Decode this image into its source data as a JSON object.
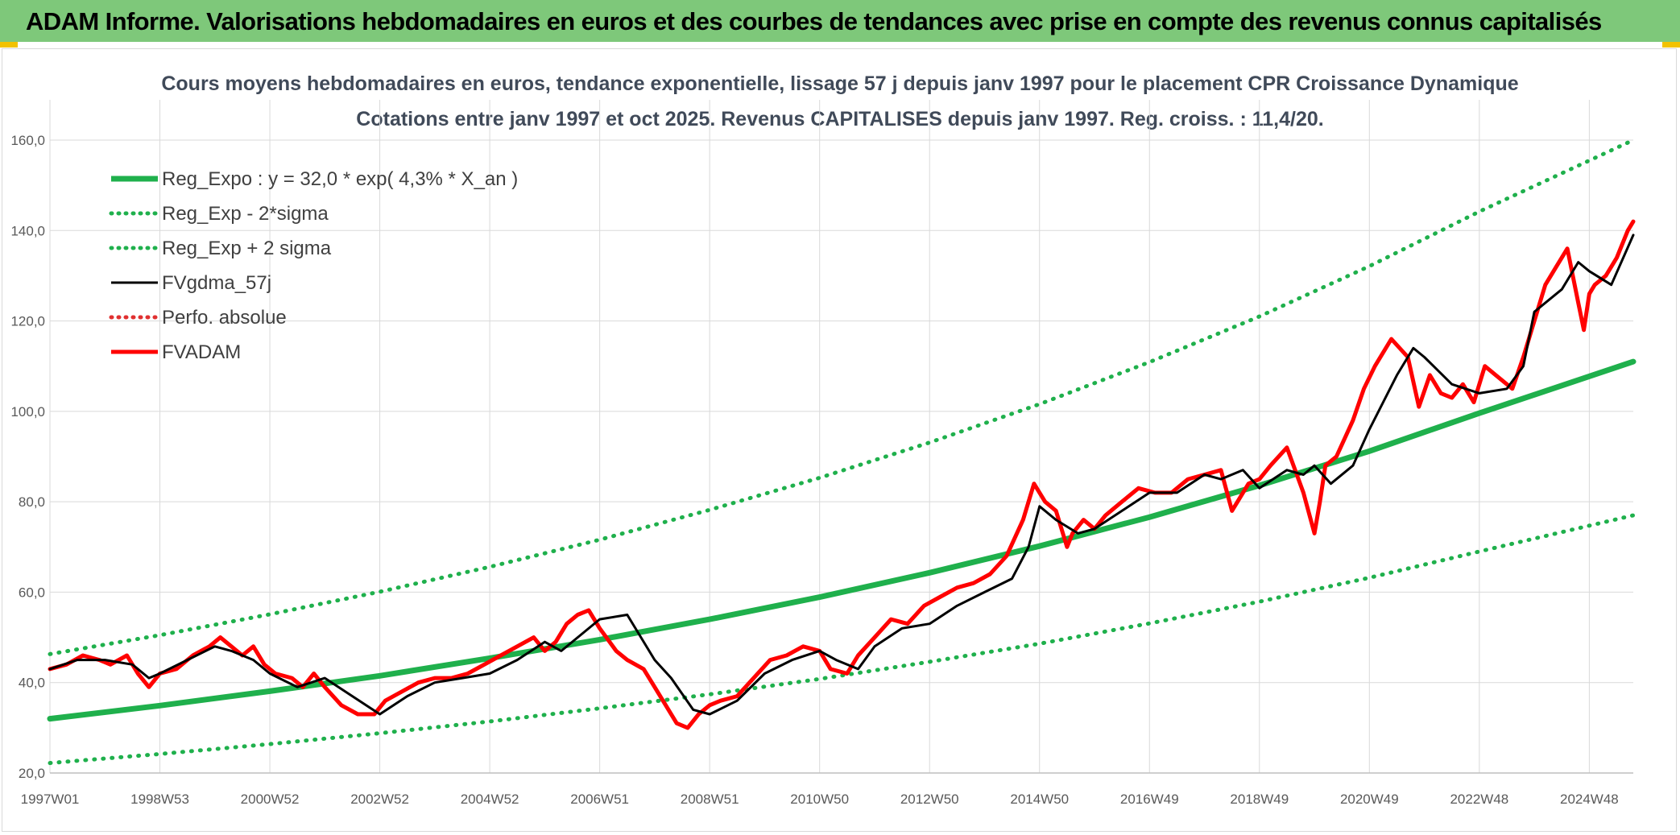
{
  "banner": {
    "title": "ADAM Informe. Valorisations hebdomadaires en euros et des courbes de tendances avec prise en compte des revenus connus capitalisés"
  },
  "colors": {
    "banner": "#7ec87a",
    "regression": "#1fb04c",
    "price": "#ff0000",
    "smoothed": "#000000",
    "perf": "#e03030",
    "grid": "#d9d9d9"
  },
  "chart_data": {
    "type": "line",
    "title": "Cours moyens hebdomadaires en euros, tendance exponentielle, lissage 57 j depuis janv 1997 pour le placement CPR Croissance Dynamique",
    "subtitle": "Cotations entre janv 1997 et oct 2025. Revenus CAPITALISES depuis janv 1997. Reg. croiss. : 11,4/20.",
    "xlabel": "",
    "ylabel": "",
    "ylim": [
      20,
      160
    ],
    "yticks": [
      "20,0",
      "40,0",
      "60,0",
      "80,0",
      "100,0",
      "120,0",
      "140,0",
      "160,0"
    ],
    "xlim": [
      1997.0,
      2025.8
    ],
    "xtick_labels": [
      "1997W01",
      "1998W53",
      "2000W52",
      "2002W52",
      "2004W52",
      "2006W51",
      "2008W51",
      "2010W50",
      "2012W50",
      "2014W50",
      "2016W49",
      "2018W49",
      "2020W49",
      "2022W48",
      "2024W48"
    ],
    "xtick_years": [
      1997.0,
      1999.0,
      2001.0,
      2003.0,
      2005.0,
      2007.0,
      2009.0,
      2011.0,
      2013.0,
      2015.0,
      2017.0,
      2019.0,
      2021.0,
      2023.0,
      2025.0
    ],
    "grid": true,
    "legend_position": "top-left",
    "series": [
      {
        "name": "Reg_Expo : y = 32,0 * exp( 4,3% *  X_an )",
        "style": "solid-thick",
        "color": "#1fb04c",
        "x": [
          1997.0,
          1999.0,
          2001.0,
          2003.0,
          2005.0,
          2007.0,
          2009.0,
          2011.0,
          2013.0,
          2015.0,
          2017.0,
          2019.0,
          2021.0,
          2023.0,
          2025.8
        ],
        "y": [
          32.0,
          34.9,
          38.1,
          41.5,
          45.4,
          49.5,
          54.0,
          58.9,
          64.3,
          70.2,
          76.6,
          83.6,
          91.2,
          99.6,
          111.0
        ]
      },
      {
        "name": "Reg_Exp - 2*sigma",
        "style": "dotted",
        "color": "#1fb04c",
        "x": [
          1997.0,
          1999.0,
          2001.0,
          2003.0,
          2005.0,
          2007.0,
          2009.0,
          2011.0,
          2013.0,
          2015.0,
          2017.0,
          2019.0,
          2021.0,
          2023.0,
          2025.8
        ],
        "y": [
          22.2,
          24.2,
          26.4,
          28.8,
          31.4,
          34.3,
          37.4,
          40.8,
          44.6,
          48.6,
          53.1,
          57.9,
          63.2,
          69.0,
          77.0
        ]
      },
      {
        "name": "Reg_Exp + 2 sigma",
        "style": "dotted",
        "color": "#1fb04c",
        "x": [
          1997.0,
          1999.0,
          2001.0,
          2003.0,
          2005.0,
          2007.0,
          2009.0,
          2011.0,
          2013.0,
          2015.0,
          2017.0,
          2019.0,
          2021.0,
          2023.0,
          2025.8
        ],
        "y": [
          46.3,
          50.5,
          55.1,
          60.1,
          65.6,
          71.6,
          78.2,
          85.3,
          93.1,
          101.6,
          110.9,
          121.0,
          132.1,
          144.2,
          160.0
        ]
      },
      {
        "name": "FVgdma_57j",
        "style": "solid",
        "color": "#000000",
        "x": [
          1997.0,
          1997.5,
          1998.0,
          1998.5,
          1998.8,
          1999.0,
          1999.5,
          2000.0,
          2000.3,
          2000.7,
          2001.0,
          2001.5,
          2002.0,
          2002.5,
          2003.0,
          2003.5,
          2004.0,
          2004.5,
          2005.0,
          2005.5,
          2006.0,
          2006.3,
          2006.6,
          2007.0,
          2007.5,
          2008.0,
          2008.3,
          2008.7,
          2009.0,
          2009.5,
          2010.0,
          2010.5,
          2011.0,
          2011.3,
          2011.7,
          2012.0,
          2012.5,
          2013.0,
          2013.5,
          2014.0,
          2014.5,
          2014.8,
          2015.0,
          2015.3,
          2015.7,
          2016.0,
          2016.5,
          2017.0,
          2017.5,
          2018.0,
          2018.3,
          2018.7,
          2019.0,
          2019.5,
          2019.8,
          2020.0,
          2020.3,
          2020.7,
          2021.0,
          2021.5,
          2021.8,
          2022.0,
          2022.5,
          2023.0,
          2023.5,
          2023.8,
          2024.0,
          2024.5,
          2024.8,
          2025.0,
          2025.4,
          2025.8
        ],
        "y": [
          43,
          45,
          45,
          44,
          41,
          42,
          45,
          48,
          47,
          45,
          42,
          39,
          41,
          37,
          33,
          37,
          40,
          41,
          42,
          45,
          49,
          47,
          50,
          54,
          55,
          45,
          41,
          34,
          33,
          36,
          42,
          45,
          47,
          45,
          43,
          48,
          52,
          53,
          57,
          60,
          63,
          70,
          79,
          76,
          73,
          74,
          78,
          82,
          82,
          86,
          85,
          87,
          83,
          87,
          86,
          88,
          84,
          88,
          96,
          108,
          114,
          112,
          106,
          104,
          105,
          110,
          122,
          127,
          133,
          131,
          128,
          139
        ]
      },
      {
        "name": "Perfo. absolue",
        "style": "dotted",
        "color": "#e03030",
        "x": [],
        "y": []
      },
      {
        "name": "FVADAM",
        "style": "solid-thick",
        "color": "#ff0000",
        "x": [
          1997.0,
          1997.3,
          1997.6,
          1997.9,
          1998.1,
          1998.4,
          1998.6,
          1998.8,
          1999.0,
          1999.3,
          1999.6,
          1999.9,
          2000.1,
          2000.3,
          2000.5,
          2000.7,
          2000.9,
          2001.1,
          2001.4,
          2001.6,
          2001.8,
          2002.0,
          2002.3,
          2002.6,
          2002.9,
          2003.1,
          2003.4,
          2003.7,
          2004.0,
          2004.3,
          2004.6,
          2004.9,
          2005.2,
          2005.5,
          2005.8,
          2006.0,
          2006.2,
          2006.4,
          2006.6,
          2006.8,
          2007.0,
          2007.3,
          2007.5,
          2007.8,
          2008.0,
          2008.2,
          2008.4,
          2008.6,
          2008.8,
          2009.0,
          2009.2,
          2009.5,
          2009.8,
          2010.1,
          2010.4,
          2010.7,
          2011.0,
          2011.2,
          2011.5,
          2011.7,
          2012.0,
          2012.3,
          2012.6,
          2012.9,
          2013.2,
          2013.5,
          2013.8,
          2014.1,
          2014.4,
          2014.7,
          2014.9,
          2015.1,
          2015.3,
          2015.5,
          2015.6,
          2015.8,
          2016.0,
          2016.2,
          2016.5,
          2016.8,
          2017.1,
          2017.4,
          2017.7,
          2018.0,
          2018.3,
          2018.5,
          2018.8,
          2019.0,
          2019.2,
          2019.5,
          2019.8,
          2020.0,
          2020.1,
          2020.2,
          2020.4,
          2020.7,
          2020.9,
          2021.1,
          2021.4,
          2021.7,
          2021.9,
          2022.1,
          2022.3,
          2022.5,
          2022.7,
          2022.9,
          2023.1,
          2023.3,
          2023.6,
          2023.8,
          2024.0,
          2024.2,
          2024.4,
          2024.6,
          2024.8,
          2024.9,
          2025.0,
          2025.1,
          2025.3,
          2025.5,
          2025.7,
          2025.8
        ],
        "y": [
          43,
          44,
          46,
          45,
          44,
          46,
          42,
          39,
          42,
          43,
          46,
          48,
          50,
          48,
          46,
          48,
          44,
          42,
          41,
          39,
          42,
          39,
          35,
          33,
          33,
          36,
          38,
          40,
          41,
          41,
          42,
          44,
          46,
          48,
          50,
          47,
          49,
          53,
          55,
          56,
          52,
          47,
          45,
          43,
          39,
          35,
          31,
          30,
          33,
          35,
          36,
          37,
          41,
          45,
          46,
          48,
          47,
          43,
          42,
          46,
          50,
          54,
          53,
          57,
          59,
          61,
          62,
          64,
          68,
          76,
          84,
          80,
          78,
          70,
          73,
          76,
          74,
          77,
          80,
          83,
          82,
          82,
          85,
          86,
          87,
          78,
          84,
          85,
          88,
          92,
          82,
          73,
          80,
          88,
          90,
          98,
          105,
          110,
          116,
          112,
          101,
          108,
          104,
          103,
          106,
          102,
          110,
          108,
          105,
          112,
          120,
          128,
          132,
          136,
          124,
          118,
          126,
          128,
          130,
          134,
          140,
          142
        ]
      }
    ]
  }
}
